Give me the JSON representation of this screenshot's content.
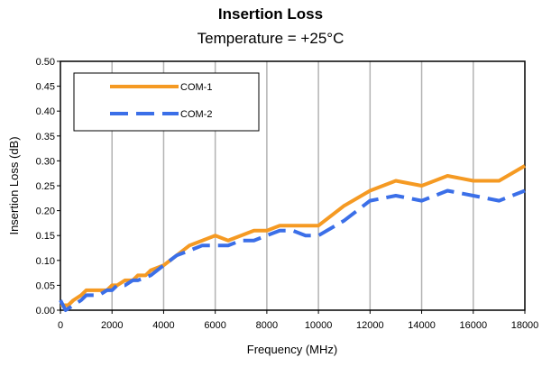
{
  "chart_data": {
    "type": "line",
    "title": "Insertion Loss",
    "subtitle": "Temperature = +25°C",
    "xlabel": "Frequency (MHz)",
    "ylabel": "Insertion Loss (dB)",
    "xlim": [
      0,
      18000
    ],
    "ylim": [
      0,
      0.5
    ],
    "xticks": [
      0,
      2000,
      4000,
      6000,
      8000,
      10000,
      12000,
      14000,
      16000,
      18000
    ],
    "xtick_labels": [
      "0",
      "2000",
      "4000",
      "6000",
      "8000",
      "10000",
      "12000",
      "14000",
      "16000",
      "18000"
    ],
    "yticks": [
      0,
      0.05,
      0.1,
      0.15,
      0.2,
      0.25,
      0.3,
      0.35,
      0.4,
      0.45,
      0.5
    ],
    "ytick_labels": [
      "0.00",
      "0.05",
      "0.10",
      "0.15",
      "0.20",
      "0.25",
      "0.30",
      "0.35",
      "0.40",
      "0.45",
      "0.50"
    ],
    "grid": "vertical",
    "legend_position": "top-left",
    "series": [
      {
        "name": "COM-1",
        "color": "#f59a23",
        "line_style": "solid",
        "x": [
          0,
          100,
          300,
          500,
          800,
          1000,
          1200,
          1500,
          1800,
          2000,
          2200,
          2500,
          2800,
          3000,
          3300,
          3500,
          4000,
          4500,
          5000,
          5500,
          6000,
          6500,
          7000,
          7500,
          8000,
          8500,
          9000,
          9500,
          10000,
          11000,
          12000,
          13000,
          14000,
          15000,
          16000,
          17000,
          18000
        ],
        "y": [
          0.01,
          0.01,
          0.01,
          0.02,
          0.03,
          0.04,
          0.04,
          0.04,
          0.04,
          0.05,
          0.05,
          0.06,
          0.06,
          0.07,
          0.07,
          0.08,
          0.09,
          0.11,
          0.13,
          0.14,
          0.15,
          0.14,
          0.15,
          0.16,
          0.16,
          0.17,
          0.17,
          0.17,
          0.17,
          0.21,
          0.24,
          0.26,
          0.25,
          0.27,
          0.26,
          0.26,
          0.29
        ]
      },
      {
        "name": "COM-2",
        "color": "#3b6fe8",
        "line_style": "dashed",
        "x": [
          0,
          200,
          500,
          800,
          1000,
          1200,
          1500,
          1800,
          2000,
          2200,
          2500,
          2800,
          3000,
          3500,
          4000,
          4500,
          5000,
          5500,
          6000,
          6500,
          7000,
          7500,
          8000,
          8500,
          9000,
          9500,
          10000,
          11000,
          12000,
          13000,
          14000,
          15000,
          16000,
          17000,
          18000
        ],
        "y": [
          0.02,
          0.0,
          0.01,
          0.02,
          0.03,
          0.03,
          0.03,
          0.04,
          0.04,
          0.05,
          0.05,
          0.06,
          0.06,
          0.07,
          0.09,
          0.11,
          0.12,
          0.13,
          0.13,
          0.13,
          0.14,
          0.14,
          0.15,
          0.16,
          0.16,
          0.15,
          0.15,
          0.18,
          0.22,
          0.23,
          0.22,
          0.24,
          0.23,
          0.22,
          0.24
        ]
      }
    ]
  }
}
